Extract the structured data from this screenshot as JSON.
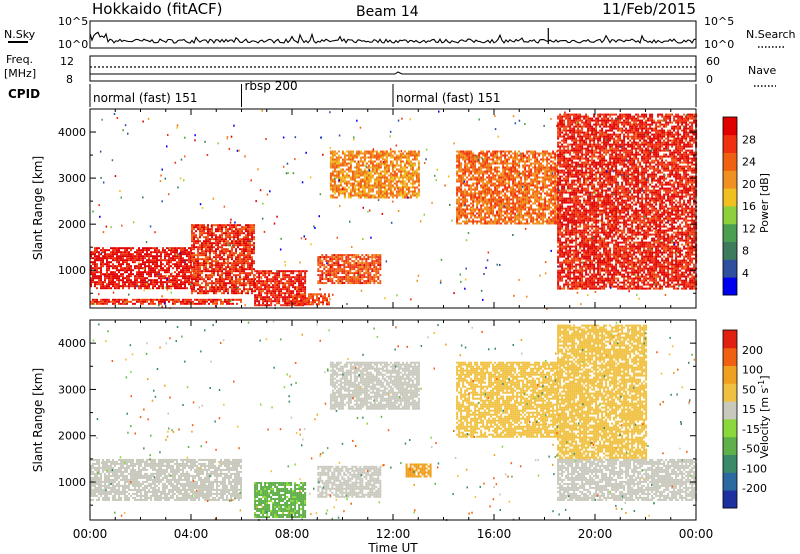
{
  "header": {
    "station": "Hokkaido (fitACF)",
    "beam": "Beam 14",
    "date": "11/Feb/2015"
  },
  "noise_panel": {
    "left_label": "N.Sky",
    "right_label": "N.Search",
    "left_ticks": [
      "10^5",
      "10^0"
    ],
    "right_ticks": [
      "10^5",
      "10^0"
    ]
  },
  "freq_panel": {
    "left_label_top": "Freq.",
    "left_label_bottom": "[MHz]",
    "right_label": "Nave",
    "left_ticks": [
      "12",
      "8"
    ],
    "right_ticks": [
      "60",
      "0"
    ]
  },
  "cpid": {
    "label": "CPID",
    "segments": [
      {
        "name": "normal (fast) 151",
        "start_hour": 0,
        "end_hour": 6
      },
      {
        "name": "rbsp 200",
        "start_hour": 6,
        "end_hour": 12
      },
      {
        "name": "normal (fast) 151",
        "start_hour": 12,
        "end_hour": 24
      }
    ]
  },
  "axis": {
    "x_label": "Time UT",
    "x_ticks": [
      "00:00",
      "04:00",
      "08:00",
      "12:00",
      "16:00",
      "20:00",
      "00:00"
    ],
    "x_tick_hours": [
      0,
      4,
      8,
      12,
      16,
      20,
      24
    ],
    "y_label": "Slant Range [km]",
    "y_ticks": [
      1000,
      2000,
      3000,
      4000
    ],
    "y_range_km": [
      180,
      4500
    ],
    "x_range_hours": [
      0,
      24
    ]
  },
  "colorbars": {
    "power": {
      "label": "Power [dB]",
      "ticks": [
        "28",
        "24",
        "20",
        "16",
        "12",
        "8",
        "4"
      ],
      "colors": [
        "#0000f0",
        "#2f4f9f",
        "#3c7c5c",
        "#4aa050",
        "#8cd03c",
        "#f0c020",
        "#f09020",
        "#f06010",
        "#f03010",
        "#e00000"
      ]
    },
    "velocity": {
      "label": "Velocity [m s^-1]",
      "label_main": "Velocity [m s",
      "label_sup": "-1",
      "label_end": "]",
      "ticks": [
        "200",
        "100",
        "50",
        "15",
        "-15",
        "-50",
        "-100",
        "-200"
      ],
      "colors": [
        "#1e30a0",
        "#2a6aa0",
        "#3a8a6a",
        "#5fb04a",
        "#8ad83a",
        "#c8c8bc",
        "#f0c040",
        "#f0a020",
        "#f06010",
        "#e02010"
      ]
    }
  },
  "chart_data": [
    {
      "type": "heatmap",
      "title": "Power [dB]",
      "xlabel": "Time UT",
      "ylabel": "Slant Range [km]",
      "xlim": [
        0,
        24
      ],
      "ylim": [
        180,
        4500
      ],
      "clim": [
        0,
        30
      ],
      "regions": [
        {
          "t_start": 0.0,
          "t_end": 4.0,
          "r_min": 600,
          "r_max": 1500,
          "value": 28
        },
        {
          "t_start": 4.0,
          "t_end": 6.5,
          "r_min": 500,
          "r_max": 2000,
          "value": 26
        },
        {
          "t_start": 6.5,
          "t_end": 8.5,
          "r_min": 250,
          "r_max": 1000,
          "value": 27
        },
        {
          "t_start": 8.0,
          "t_end": 9.5,
          "r_min": 250,
          "r_max": 500,
          "value": 25
        },
        {
          "t_start": 9.0,
          "t_end": 11.5,
          "r_min": 700,
          "r_max": 1350,
          "value": 24
        },
        {
          "t_start": 9.5,
          "t_end": 13.0,
          "r_min": 2600,
          "r_max": 3600,
          "value": 20
        },
        {
          "t_start": 14.5,
          "t_end": 18.5,
          "r_min": 2000,
          "r_max": 3600,
          "value": 22
        },
        {
          "t_start": 18.5,
          "t_end": 24.0,
          "r_min": 600,
          "r_max": 4400,
          "value": 27
        },
        {
          "t_start": 0.0,
          "t_end": 6.0,
          "r_min": 280,
          "r_max": 380,
          "value": 26
        }
      ]
    },
    {
      "type": "heatmap",
      "title": "Velocity [m s^-1]",
      "xlabel": "Time UT",
      "ylabel": "Slant Range [km]",
      "xlim": [
        0,
        24
      ],
      "ylim": [
        180,
        4500
      ],
      "clim": [
        -200,
        200
      ],
      "regions": [
        {
          "t_start": 0.0,
          "t_end": 6.0,
          "r_min": 600,
          "r_max": 1500,
          "value": 0
        },
        {
          "t_start": 6.5,
          "t_end": 8.5,
          "r_min": 250,
          "r_max": 1000,
          "value": -60
        },
        {
          "t_start": 9.0,
          "t_end": 11.5,
          "r_min": 700,
          "r_max": 1350,
          "value": 0
        },
        {
          "t_start": 9.5,
          "t_end": 13.0,
          "r_min": 2600,
          "r_max": 3600,
          "value": 0
        },
        {
          "t_start": 14.5,
          "t_end": 18.5,
          "r_min": 2000,
          "r_max": 3600,
          "value": 30
        },
        {
          "t_start": 18.5,
          "t_end": 22.0,
          "r_min": 1500,
          "r_max": 4400,
          "value": 30
        },
        {
          "t_start": 18.5,
          "t_end": 24.0,
          "r_min": 600,
          "r_max": 1500,
          "value": 0
        },
        {
          "t_start": 12.5,
          "t_end": 13.5,
          "r_min": 1100,
          "r_max": 1400,
          "value": 80
        }
      ]
    }
  ]
}
